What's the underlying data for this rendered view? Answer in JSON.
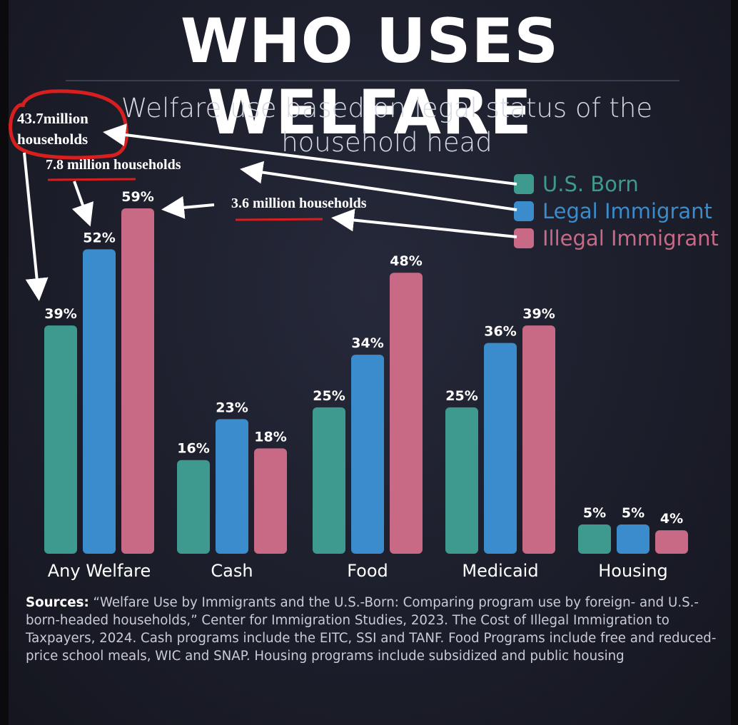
{
  "title": "WHO USES WELFARE",
  "subtitle": "Welfare use based on legal status of the household head",
  "legend": [
    {
      "label": "U.S. Born",
      "color": "#3e9a8e"
    },
    {
      "label": "Legal Immigrant",
      "color": "#3a8ccc"
    },
    {
      "label": "Illegal Immigrant",
      "color": "#c86a86"
    }
  ],
  "annotations": {
    "us_born": "43.7million households",
    "us_born_line1": "43.7million",
    "us_born_line2": "households",
    "legal": "7.8 million households",
    "illegal": "3.6 million households"
  },
  "chart_data": {
    "type": "bar",
    "title": "Welfare use based on legal status of the household head",
    "categories": [
      "Any Welfare",
      "Cash",
      "Food",
      "Medicaid",
      "Housing"
    ],
    "series": [
      {
        "name": "U.S. Born",
        "color": "#3e9a8e",
        "values": [
          39,
          16,
          25,
          25,
          5
        ]
      },
      {
        "name": "Legal Immigrant",
        "color": "#3a8ccc",
        "values": [
          52,
          23,
          34,
          36,
          5
        ]
      },
      {
        "name": "Illegal Immigrant",
        "color": "#c86a86",
        "values": [
          59,
          18,
          48,
          39,
          4
        ]
      }
    ],
    "value_suffix": "%",
    "ylim": [
      0,
      59
    ],
    "xlabel": "",
    "ylabel": "",
    "grid": false,
    "legend_position": "top-right"
  },
  "sources": {
    "label": "Sources:",
    "text": "“Welfare Use by Immigrants and the U.S.-Born: Comparing program use by foreign- and U.S.-born-headed households,” Center for Immigration Studies, 2023. The Cost of Illegal Immigration to Taxpayers, 2024. Cash programs include the EITC, SSI and TANF. Food Programs include free and reduced-price school meals, WIC and SNAP. Housing programs include subsidized and public housing"
  }
}
